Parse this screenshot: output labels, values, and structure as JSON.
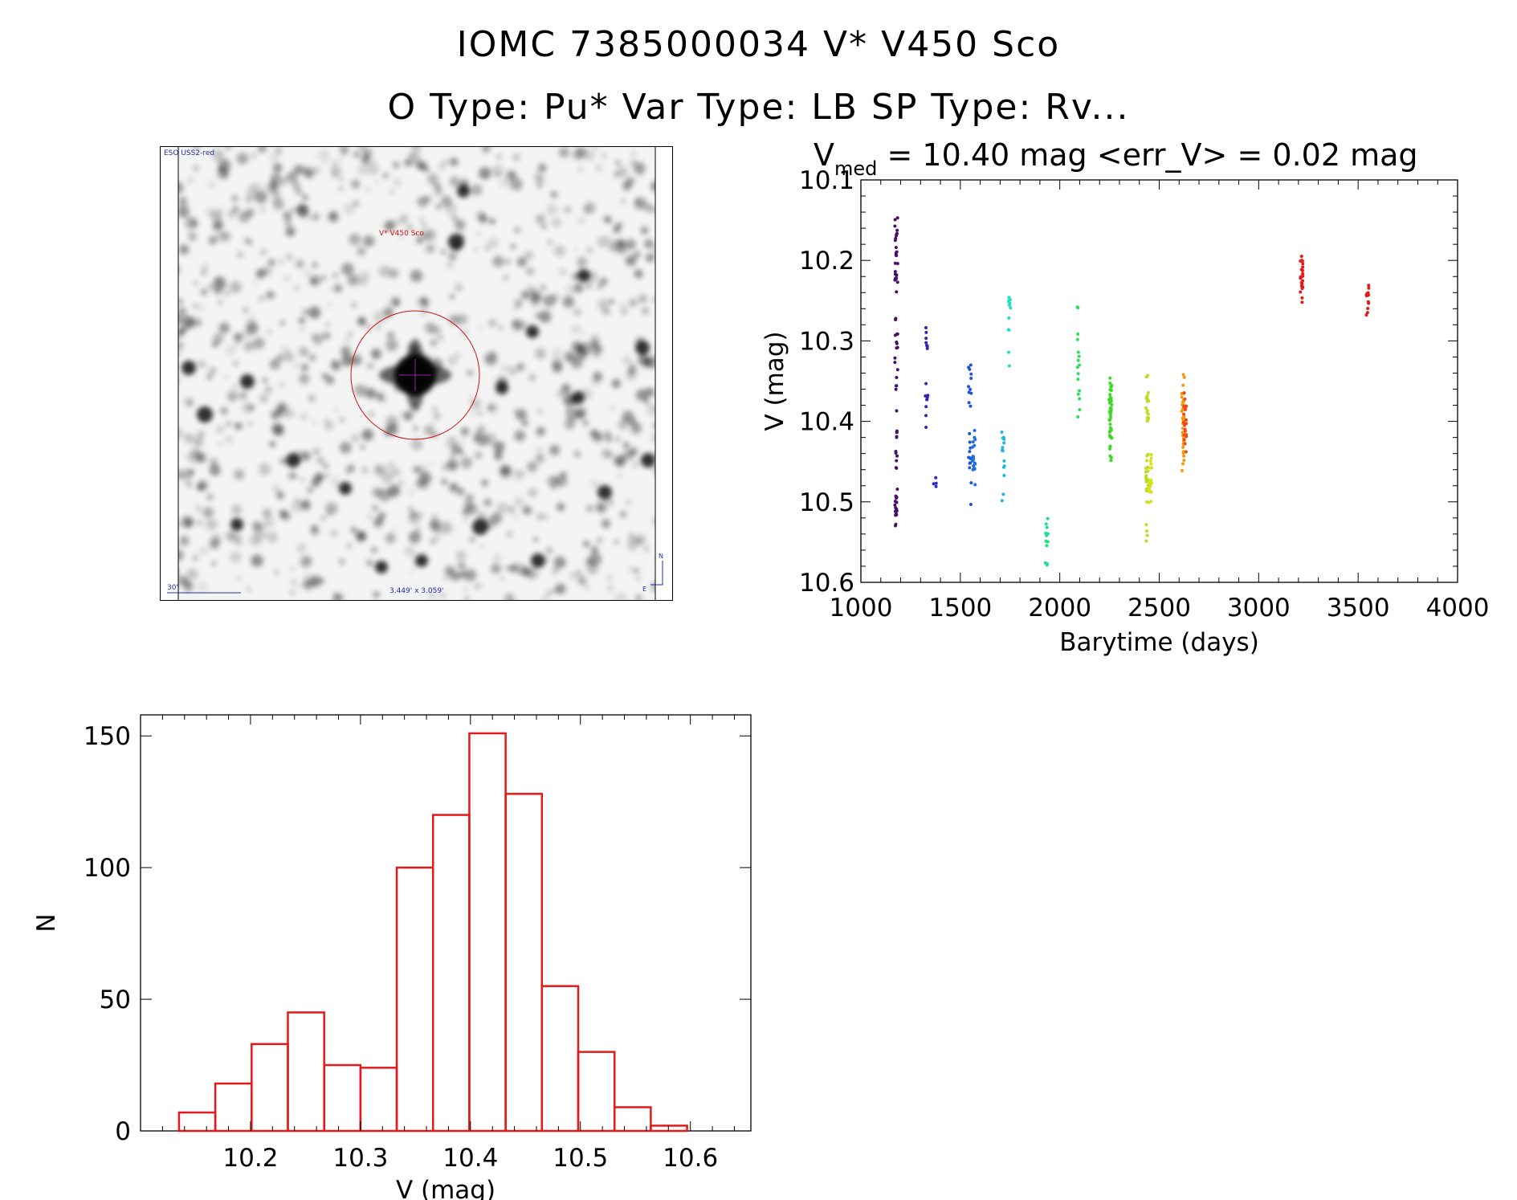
{
  "header": {
    "title_line1": "IOMC 7385000034    V* V450 Sco",
    "title_line2": "O Type: Pu*  Var Type: LB  SP Type: Rv..."
  },
  "finder_chart": {
    "survey_label": "ESO USS2-red",
    "target_label": "V* V450 Sco",
    "scale_label": "30\"",
    "fov_label": "3.449' x 3.059'",
    "north_label": "N",
    "east_label": "E",
    "colors": {
      "label": "#1c2fa3",
      "circle": "#cc1111",
      "crosshair": "#9b1fa8"
    }
  },
  "chart_data": [
    {
      "type": "scatter",
      "title_main": "V",
      "title_subscript": "med",
      "title_rest": " = 10.40 mag <err_V> = 0.02 mag",
      "xlabel": "Barytime (days)",
      "ylabel": "V (mag)",
      "xlim": [
        1000,
        4000
      ],
      "ylim": [
        10.1,
        10.6
      ],
      "y_inverted": true,
      "xticks": [
        1000,
        1500,
        2000,
        2500,
        3000,
        3500,
        4000
      ],
      "yticks": [
        10.1,
        10.2,
        10.3,
        10.4,
        10.5,
        10.6
      ],
      "ytick_labels": [
        "10.1",
        "10.2",
        "10.3",
        "10.4",
        "10.5",
        "10.6"
      ],
      "grid": false,
      "groups": [
        {
          "x": 1178,
          "ymin": 10.14,
          "ymax": 10.53,
          "dense": [
            10.18,
            10.22,
            10.43,
            10.5
          ],
          "color": "#4a0f6b",
          "n": 70
        },
        {
          "x": 1330,
          "ymin": 10.28,
          "ymax": 10.41,
          "dense": [
            10.31,
            10.39
          ],
          "color": "#3a22b5",
          "n": 16
        },
        {
          "x": 1372,
          "ymin": 10.47,
          "ymax": 10.485,
          "dense": [
            10.48
          ],
          "color": "#2e2fc0",
          "n": 4
        },
        {
          "x": 1548,
          "ymin": 10.33,
          "ymax": 10.51,
          "dense": [
            10.35,
            10.44
          ],
          "color": "#1f56d6",
          "n": 24
        },
        {
          "x": 1568,
          "ymin": 10.41,
          "ymax": 10.48,
          "dense": [
            10.44
          ],
          "color": "#1f72e0",
          "n": 20
        },
        {
          "x": 1715,
          "ymin": 10.41,
          "ymax": 10.5,
          "dense": [
            10.42,
            10.44
          ],
          "color": "#1fb9e0",
          "n": 14
        },
        {
          "x": 1748,
          "ymin": 10.2,
          "ymax": 10.37,
          "dense": [
            10.24
          ],
          "color": "#1fe0c4",
          "n": 12
        },
        {
          "x": 1933,
          "ymin": 10.52,
          "ymax": 10.58,
          "dense": [
            10.55
          ],
          "color": "#1fe08a",
          "n": 12
        },
        {
          "x": 2095,
          "ymin": 10.25,
          "ymax": 10.4,
          "dense": [
            10.26,
            10.36
          ],
          "color": "#2ee05a",
          "n": 16
        },
        {
          "x": 2255,
          "ymin": 10.34,
          "ymax": 10.45,
          "dense": [
            10.37,
            10.4
          ],
          "color": "#3ed82a",
          "n": 50
        },
        {
          "x": 2440,
          "ymin": 10.33,
          "ymax": 10.55,
          "dense": [
            10.38,
            10.46
          ],
          "color": "#b8e01f",
          "n": 40
        },
        {
          "x": 2455,
          "ymin": 10.44,
          "ymax": 10.51,
          "dense": [
            10.47
          ],
          "color": "#d8e01f",
          "n": 20
        },
        {
          "x": 2620,
          "ymin": 10.34,
          "ymax": 10.49,
          "dense": [
            10.38,
            10.43
          ],
          "color": "#f09a14",
          "n": 40
        },
        {
          "x": 2630,
          "ymin": 10.35,
          "ymax": 10.46,
          "dense": [
            10.4
          ],
          "color": "#ee4a14",
          "n": 22
        },
        {
          "x": 3215,
          "ymin": 10.19,
          "ymax": 10.26,
          "dense": [
            10.22
          ],
          "color": "#e31a1a",
          "n": 24
        },
        {
          "x": 3548,
          "ymin": 10.23,
          "ymax": 10.27,
          "dense": [
            10.25
          ],
          "color": "#e31a1a",
          "n": 14
        }
      ]
    },
    {
      "type": "bar",
      "histogram": true,
      "xlabel": "V (mag)",
      "ylabel": "N",
      "xlim": [
        10.1,
        10.655
      ],
      "ylim": [
        0,
        158
      ],
      "xticks": [
        10.2,
        10.3,
        10.4,
        10.5,
        10.6
      ],
      "xtick_labels": [
        "10.2",
        "10.3",
        "10.4",
        "10.5",
        "10.6"
      ],
      "yticks": [
        0,
        50,
        100,
        150
      ],
      "ytick_labels": [
        "0",
        "50",
        "100",
        "150"
      ],
      "bin_edges": [
        10.135,
        10.168,
        10.201,
        10.234,
        10.267,
        10.3,
        10.333,
        10.366,
        10.399,
        10.432,
        10.465,
        10.498,
        10.531,
        10.564,
        10.597
      ],
      "counts": [
        7,
        18,
        33,
        45,
        25,
        24,
        100,
        120,
        151,
        128,
        55,
        30,
        9,
        2
      ],
      "color": "#e31a1a"
    }
  ]
}
